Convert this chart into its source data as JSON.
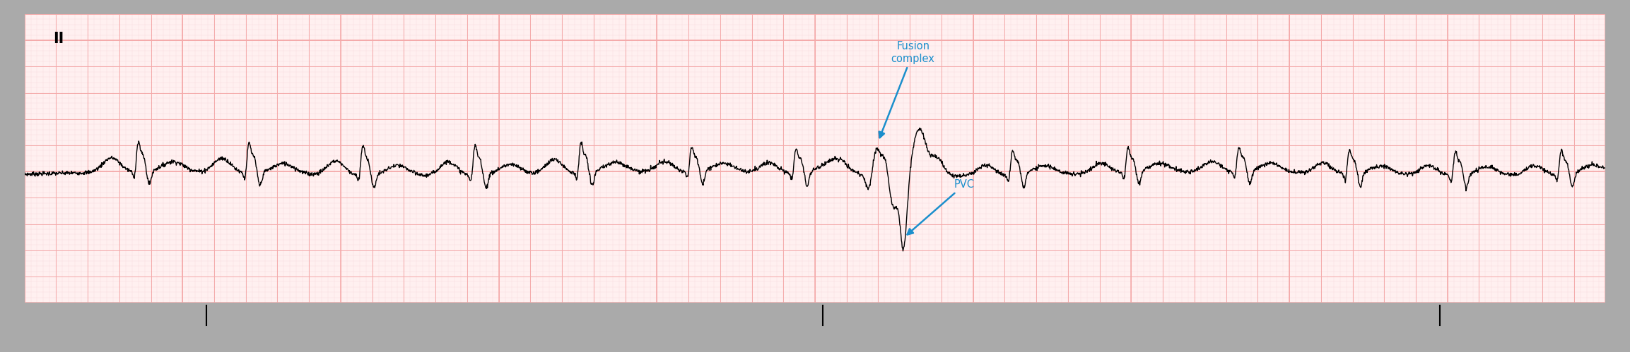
{
  "title": "II",
  "background_color": "#FFFFFF",
  "ecg_paper_color": "#FFF0F0",
  "grid_major_color": "#F4AAAA",
  "grid_minor_color": "#FADADD",
  "ecg_color": "#000000",
  "label_color": "#1B8FCC",
  "fusion_label": "Fusion\ncomplex",
  "pvc_label": "PVC",
  "figsize": [
    23.06,
    4.99
  ],
  "dpi": 100,
  "xlim": [
    0,
    10
  ],
  "ylim": [
    -0.55,
    0.55
  ]
}
